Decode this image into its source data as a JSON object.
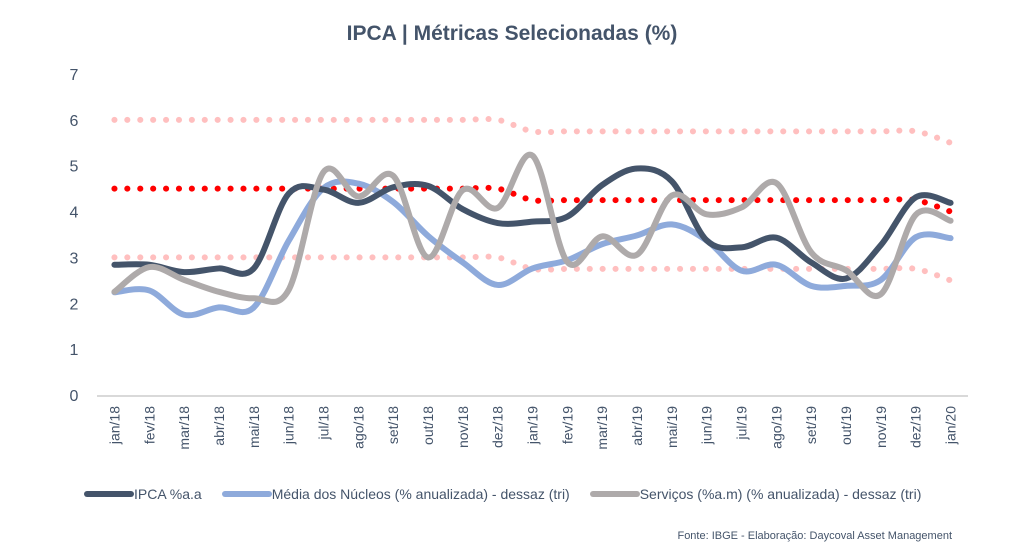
{
  "chart_data": {
    "type": "line",
    "title": "IPCA | Métricas Selecionadas (%)",
    "xlabel": "",
    "ylabel": "",
    "ylim": [
      0,
      7
    ],
    "yticks": [
      "0",
      "1",
      "2",
      "3",
      "4",
      "5",
      "6",
      "7"
    ],
    "grid": false,
    "legend_position": "bottom",
    "categories": [
      "jan/18",
      "fev/18",
      "mar/18",
      "abr/18",
      "mai/18",
      "jun/18",
      "jul/18",
      "ago/18",
      "set/18",
      "out/18",
      "nov/18",
      "dez/18",
      "jan/19",
      "fev/19",
      "mar/19",
      "abr/19",
      "mai/19",
      "jun/19",
      "jul/19",
      "ago/19",
      "set/19",
      "out/19",
      "nov/19",
      "dez/19",
      "jan/20"
    ],
    "series": [
      {
        "name": "IPCA %a.a",
        "color": "#44546a",
        "style": "solid",
        "in_legend": true,
        "values": [
          2.84,
          2.84,
          2.68,
          2.76,
          2.76,
          4.39,
          4.48,
          4.19,
          4.53,
          4.56,
          4.05,
          3.75,
          3.78,
          3.89,
          4.58,
          4.94,
          4.66,
          3.37,
          3.22,
          3.43,
          2.89,
          2.54,
          3.27,
          4.31,
          4.19
        ]
      },
      {
        "name": "Média dos Núcleos (% anualizada) - dessaz (tri)",
        "color": "#8eaadb",
        "style": "solid",
        "in_legend": true,
        "values": [
          2.24,
          2.28,
          1.75,
          1.91,
          1.91,
          3.36,
          4.51,
          4.61,
          4.21,
          3.47,
          2.89,
          2.4,
          2.76,
          2.94,
          3.29,
          3.48,
          3.72,
          3.37,
          2.71,
          2.84,
          2.38,
          2.38,
          2.51,
          3.44,
          3.42
        ]
      },
      {
        "name": "Serviços (%a.m) (% anualizada) - dessaz (tri)",
        "color": "#aeaaaa",
        "style": "solid",
        "in_legend": true,
        "values": [
          2.25,
          2.79,
          2.51,
          2.25,
          2.11,
          2.29,
          4.86,
          4.33,
          4.78,
          3.0,
          4.47,
          4.08,
          5.22,
          2.9,
          3.46,
          3.06,
          4.35,
          3.94,
          4.09,
          4.62,
          3.11,
          2.72,
          2.2,
          3.93,
          3.8
        ]
      },
      {
        "name": "Meta",
        "color": "#ff0000",
        "style": "dotted",
        "in_legend": false,
        "values": [
          4.5,
          4.5,
          4.5,
          4.5,
          4.5,
          4.5,
          4.5,
          4.5,
          4.5,
          4.5,
          4.5,
          4.5,
          4.25,
          4.25,
          4.25,
          4.25,
          4.25,
          4.25,
          4.25,
          4.25,
          4.25,
          4.25,
          4.25,
          4.25,
          4.0
        ]
      },
      {
        "name": "Limite superior",
        "color": "#ffbfbf",
        "style": "dotted",
        "in_legend": false,
        "values": [
          6.0,
          6.0,
          6.0,
          6.0,
          6.0,
          6.0,
          6.0,
          6.0,
          6.0,
          6.0,
          6.0,
          6.0,
          5.75,
          5.75,
          5.75,
          5.75,
          5.75,
          5.75,
          5.75,
          5.75,
          5.75,
          5.75,
          5.75,
          5.75,
          5.5
        ]
      },
      {
        "name": "Limite inferior",
        "color": "#ffbfbf",
        "style": "dotted",
        "in_legend": false,
        "values": [
          3.0,
          3.0,
          3.0,
          3.0,
          3.0,
          3.0,
          3.0,
          3.0,
          3.0,
          3.0,
          3.0,
          3.0,
          2.75,
          2.75,
          2.75,
          2.75,
          2.75,
          2.75,
          2.75,
          2.75,
          2.75,
          2.75,
          2.75,
          2.75,
          2.5
        ]
      }
    ],
    "source_note": "Fonte: IBGE - Elaboração: Daycoval Asset Management"
  },
  "axis_color": "#d9d9d9"
}
